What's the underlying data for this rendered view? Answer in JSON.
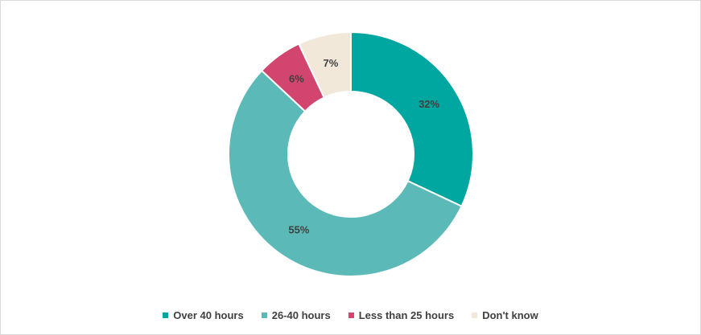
{
  "chart_data": {
    "type": "donut",
    "categories": [
      "Over 40 hours",
      "26-40 hours",
      "Less than 25 hours",
      "Don't know"
    ],
    "values": [
      32,
      55,
      6,
      7
    ],
    "value_labels": [
      "32%",
      "55%",
      "6%",
      "7%"
    ],
    "colors": [
      "#00a6a0",
      "#5bbab7",
      "#d1456f",
      "#f2e8da"
    ],
    "legend": "bottom"
  }
}
